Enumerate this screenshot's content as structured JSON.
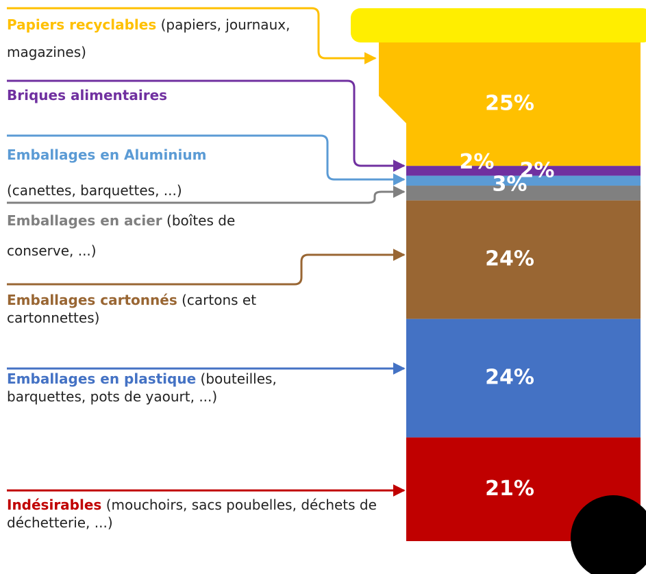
{
  "chart_data": {
    "type": "stacked-column",
    "names": [
      "Papiers recyclables",
      "Briques alimentaires",
      "Emballages en Aluminium",
      "Emballages en acier",
      "Emballages cartonnés",
      "Emballages en plastique",
      "Indésirables"
    ],
    "descriptions": [
      "(papiers, journaux, magazines)",
      null,
      "(canettes, barquettes, ...)",
      "(boîtes de conserve, ...)",
      "(cartons et cartonnettes)",
      "(bouteilles, barquettes, pots de yaourt, ...)",
      "(mouchoirs, sacs poubelles, déchets de déchetterie, ...)"
    ],
    "values": [
      25,
      2,
      2,
      3,
      24,
      24,
      21
    ],
    "value_labels": [
      "25%",
      "2%",
      "2%",
      "3%",
      "24%",
      "24%",
      "21%"
    ],
    "colors": [
      "#ffc000",
      "#7030a0",
      "#5b9bd5",
      "#808080",
      "#996633",
      "#4472c4",
      "#c00000"
    ],
    "lid_color": "#ffee00"
  }
}
